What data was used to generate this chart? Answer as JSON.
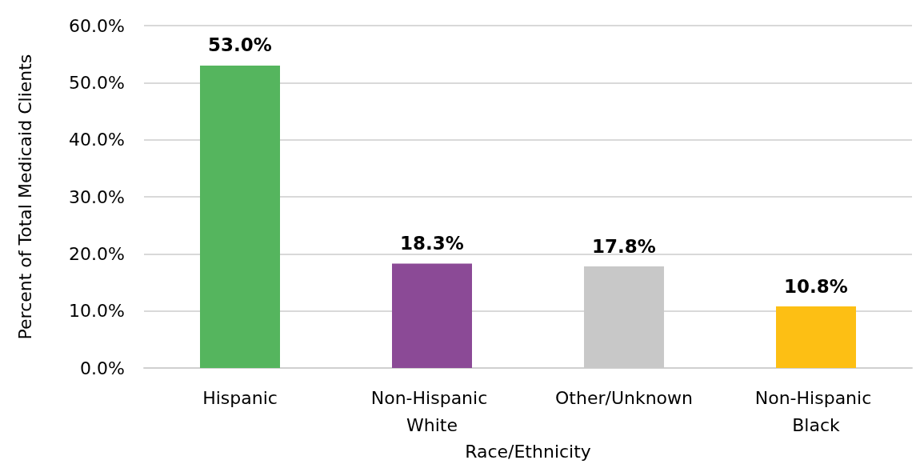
{
  "chart_data": {
    "type": "bar",
    "xlabel": "Race/Ethnicity",
    "ylabel": "Percent of Total Medicaid Clients",
    "categories": [
      "Hispanic",
      "Non-Hispanic White",
      "Other/Unknown",
      "Non-Hispanic Black"
    ],
    "values": [
      53.0,
      18.3,
      17.8,
      10.8
    ],
    "colors": [
      "#55b55e",
      "#8b4a96",
      "#c8c8c8",
      "#fdbf14"
    ],
    "value_labels": [
      "53.0%",
      "18.3%",
      "17.8%",
      "10.8%"
    ],
    "ylim": [
      0,
      60
    ],
    "yticks": [
      {
        "value": 0,
        "label": "0.0%"
      },
      {
        "value": 10,
        "label": "10.0%"
      },
      {
        "value": 20,
        "label": "20.0%"
      },
      {
        "value": 30,
        "label": "30.0%"
      },
      {
        "value": 40,
        "label": "40.0%"
      },
      {
        "value": 50,
        "label": "50.0%"
      },
      {
        "value": 60,
        "label": "60.0%"
      }
    ],
    "grid": "y"
  }
}
